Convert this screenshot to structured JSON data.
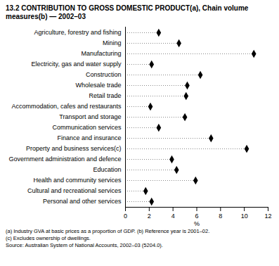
{
  "chart_data": {
    "type": "dot",
    "orientation": "horizontal",
    "title": "13.2 CONTRIBUTION TO GROSS DOMESTIC PRODUCT(a), Chain volume measures(b) — 2002–03",
    "x_label": "%",
    "categories": [
      "Agriculture, forestry and fishing",
      "Mining",
      "Manufacturing",
      "Electricity, gas and water supply",
      "Construction",
      "Wholesale trade",
      "Retail trade",
      "Accommodation, cafes and restaurants",
      "Transport and storage",
      "Communication services",
      "Finance and insurance",
      "Property and business services(c)",
      "Government administration and defence",
      "Education",
      "Health and community services",
      "Cultural and recreational services",
      "Personal and other services"
    ],
    "values": [
      2.8,
      4.5,
      10.8,
      2.2,
      6.3,
      5.2,
      5.1,
      2.1,
      5.0,
      2.8,
      7.2,
      10.2,
      3.9,
      4.3,
      5.9,
      1.7,
      2.2
    ],
    "color": "#000000",
    "marker": "diamond",
    "line_style": "dotted",
    "xlim": [
      0,
      12
    ],
    "xticks": [
      0,
      2,
      4,
      6,
      8,
      10,
      12
    ],
    "grid": false,
    "notes": [
      "(a) Industry GVA at basic prices as a proportion of GDP. (b) Reference year is 2001–02.",
      "(c) Excludes ownership of dwellings.",
      "Source: Australian System of National Accounts, 2002–03 (5204.0)."
    ]
  }
}
